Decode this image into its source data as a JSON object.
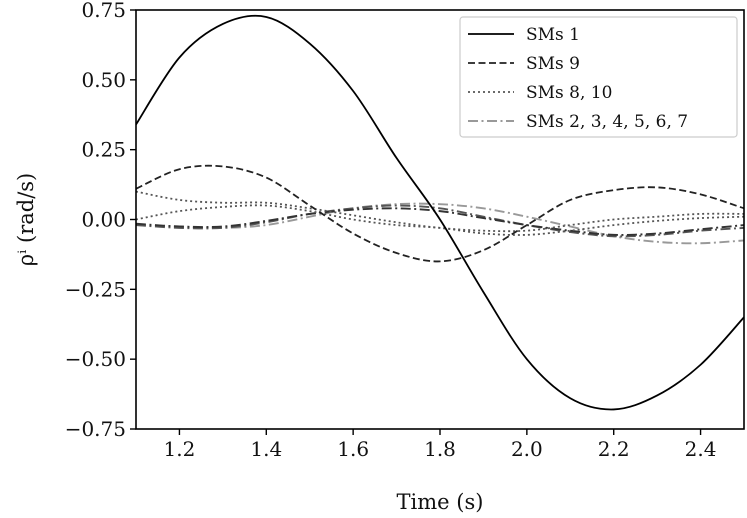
{
  "chart_data": {
    "type": "line",
    "title": "",
    "xlabel": "Time (s)",
    "ylabel": "ρⁱ (rad/s)",
    "xlim": [
      1.1,
      2.5
    ],
    "ylim": [
      -0.75,
      0.75
    ],
    "xticks": [
      1.2,
      1.4,
      1.6,
      1.8,
      2.0,
      2.2,
      2.4
    ],
    "xtick_labels": [
      "1.2",
      "1.4",
      "1.6",
      "1.8",
      "2.0",
      "2.2",
      "2.4"
    ],
    "yticks": [
      0.75,
      0.5,
      0.25,
      0.0,
      -0.25,
      -0.5,
      -0.75
    ],
    "ytick_labels": [
      "0.75",
      "0.50",
      "0.25",
      "0.00",
      "−0.25",
      "−0.50",
      "−0.75"
    ],
    "legend_position": "top-right",
    "legend": [
      "SMs 1",
      "SMs 9",
      "SMs 8, 10",
      "SMs 2, 3, 4, 5, 6, 7"
    ],
    "x": [
      1.1,
      1.2,
      1.3,
      1.4,
      1.5,
      1.6,
      1.7,
      1.8,
      1.9,
      2.0,
      2.1,
      2.2,
      2.3,
      2.4,
      2.5
    ],
    "series": [
      {
        "name": "SMs 1",
        "style": "solid",
        "color": "#000000",
        "values": [
          0.34,
          0.58,
          0.7,
          0.725,
          0.63,
          0.46,
          0.22,
          0.0,
          -0.26,
          -0.5,
          -0.64,
          -0.68,
          -0.63,
          -0.52,
          -0.35
        ]
      },
      {
        "name": "SMs 9",
        "style": "dashed",
        "color": "#222222",
        "values": [
          0.11,
          0.18,
          0.19,
          0.15,
          0.05,
          -0.05,
          -0.12,
          -0.15,
          -0.11,
          -0.02,
          0.07,
          0.105,
          0.115,
          0.09,
          0.04
        ]
      },
      {
        "name": "SMs 8, 10 (a)",
        "style": "dotted",
        "color": "#555555",
        "values": [
          0.1,
          0.07,
          0.06,
          0.06,
          0.04,
          0.015,
          -0.01,
          -0.03,
          -0.04,
          -0.04,
          -0.02,
          0.0,
          0.01,
          0.02,
          0.02
        ]
      },
      {
        "name": "SMs 8, 10 (b)",
        "style": "dotted",
        "color": "#555555",
        "values": [
          0.0,
          0.03,
          0.045,
          0.05,
          0.03,
          0.0,
          -0.02,
          -0.03,
          -0.05,
          -0.055,
          -0.04,
          -0.02,
          -0.005,
          0.005,
          0.01
        ]
      },
      {
        "name": "SMs 2, 3, 4, 5, 6, 7 (a)",
        "style": "dashdot",
        "color": "#333333",
        "values": [
          -0.015,
          -0.025,
          -0.025,
          -0.005,
          0.02,
          0.035,
          0.04,
          0.03,
          0.005,
          -0.02,
          -0.04,
          -0.055,
          -0.05,
          -0.035,
          -0.02
        ]
      },
      {
        "name": "SMs 2, 3, 4, 5, 6, 7 (b)",
        "style": "dashdot",
        "color": "#555555",
        "values": [
          -0.02,
          -0.03,
          -0.03,
          -0.01,
          0.02,
          0.04,
          0.05,
          0.04,
          0.01,
          -0.02,
          -0.045,
          -0.06,
          -0.055,
          -0.04,
          -0.03
        ]
      },
      {
        "name": "SMs 2, 3, 4, 5, 6, 7 (c)",
        "style": "dashdot",
        "color": "#999999",
        "values": [
          -0.02,
          -0.025,
          -0.03,
          -0.02,
          0.01,
          0.04,
          0.055,
          0.055,
          0.04,
          0.01,
          -0.025,
          -0.06,
          -0.08,
          -0.085,
          -0.075
        ]
      }
    ]
  }
}
